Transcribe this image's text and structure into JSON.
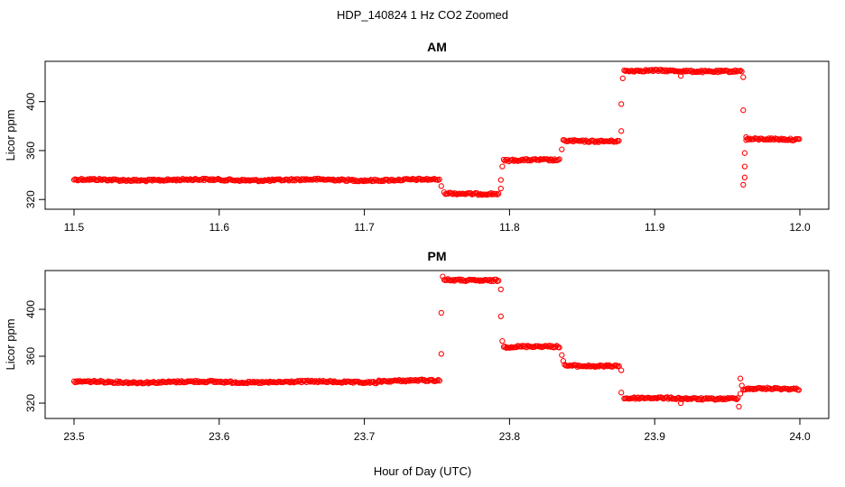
{
  "figure": {
    "title": "HDP_140824  1 Hz CO2 Zoomed",
    "xlabel": "Hour of Day (UTC)"
  },
  "chart_data": [
    {
      "type": "scatter",
      "title": "AM",
      "xlabel": "",
      "ylabel": "Licor ppm",
      "xlim": [
        11.5,
        12.0
      ],
      "ylim": [
        315,
        430
      ],
      "x_ticks": [
        11.5,
        11.6,
        11.7,
        11.8,
        11.9,
        12.0
      ],
      "x_tick_labels": [
        "11.5",
        "11.6",
        "11.7",
        "11.8",
        "11.9",
        "12.0"
      ],
      "y_ticks": [
        320,
        360,
        400
      ],
      "y_tick_labels": [
        "320",
        "360",
        "400"
      ],
      "grid": false,
      "marker": "open-circle",
      "color": "#ff0000",
      "segments": [
        {
          "x_start": 11.5,
          "x_end": 11.752,
          "y": 336
        },
        {
          "x_start": 11.755,
          "x_end": 11.793,
          "y": 325
        },
        {
          "x_start": 11.796,
          "x_end": 11.835,
          "y": 352
        },
        {
          "x_start": 11.837,
          "x_end": 11.876,
          "y": 368
        },
        {
          "x_start": 11.879,
          "x_end": 11.96,
          "y": 425
        },
        {
          "x_start": 11.963,
          "x_end": 12.0,
          "y": 369
        }
      ],
      "transition_points": [
        {
          "x": 11.753,
          "y": 331
        },
        {
          "x": 11.794,
          "y": 329
        },
        {
          "x": 11.794,
          "y": 336
        },
        {
          "x": 11.795,
          "y": 347
        },
        {
          "x": 11.836,
          "y": 361
        },
        {
          "x": 11.877,
          "y": 376
        },
        {
          "x": 11.877,
          "y": 398
        },
        {
          "x": 11.878,
          "y": 419
        },
        {
          "x": 11.918,
          "y": 421
        },
        {
          "x": 11.961,
          "y": 420
        },
        {
          "x": 11.961,
          "y": 393
        },
        {
          "x": 11.962,
          "y": 338
        },
        {
          "x": 11.961,
          "y": 332
        },
        {
          "x": 11.962,
          "y": 347
        },
        {
          "x": 11.962,
          "y": 358
        },
        {
          "x": 11.963,
          "y": 371
        }
      ]
    },
    {
      "type": "scatter",
      "title": "PM",
      "xlabel": "",
      "ylabel": "Licor ppm",
      "xlim": [
        23.5,
        24.0
      ],
      "ylim": [
        310,
        430
      ],
      "x_ticks": [
        23.5,
        23.6,
        23.7,
        23.8,
        23.9,
        24.0
      ],
      "x_tick_labels": [
        "23.5",
        "23.6",
        "23.7",
        "23.8",
        "23.9",
        "24.0"
      ],
      "y_ticks": [
        320,
        360,
        400
      ],
      "y_tick_labels": [
        "320",
        "360",
        "400"
      ],
      "grid": false,
      "marker": "open-circle",
      "color": "#ff0000",
      "segments": [
        {
          "x_start": 23.5,
          "x_end": 23.71,
          "y": 338
        },
        {
          "x_start": 23.71,
          "x_end": 23.752,
          "y": 339
        },
        {
          "x_start": 23.755,
          "x_end": 23.793,
          "y": 425
        },
        {
          "x_start": 23.796,
          "x_end": 23.835,
          "y": 368
        },
        {
          "x_start": 23.838,
          "x_end": 23.876,
          "y": 352
        },
        {
          "x_start": 23.879,
          "x_end": 23.958,
          "y": 324
        },
        {
          "x_start": 23.961,
          "x_end": 24.0,
          "y": 332
        }
      ],
      "transition_points": [
        {
          "x": 23.753,
          "y": 362
        },
        {
          "x": 23.753,
          "y": 397
        },
        {
          "x": 23.754,
          "y": 428
        },
        {
          "x": 23.794,
          "y": 417
        },
        {
          "x": 23.794,
          "y": 394
        },
        {
          "x": 23.795,
          "y": 373
        },
        {
          "x": 23.836,
          "y": 361
        },
        {
          "x": 23.837,
          "y": 356
        },
        {
          "x": 23.877,
          "y": 348
        },
        {
          "x": 23.877,
          "y": 329
        },
        {
          "x": 23.918,
          "y": 320
        },
        {
          "x": 23.959,
          "y": 341
        },
        {
          "x": 23.958,
          "y": 317
        },
        {
          "x": 23.959,
          "y": 328
        },
        {
          "x": 23.96,
          "y": 335
        }
      ]
    }
  ]
}
